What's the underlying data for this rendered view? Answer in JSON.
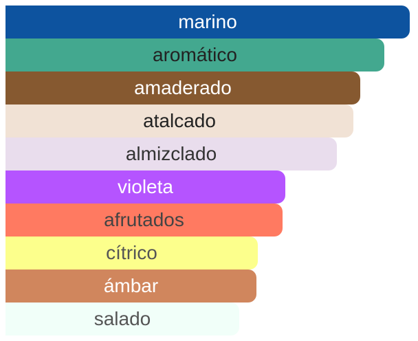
{
  "chart_data": {
    "type": "bar",
    "orientation": "horizontal",
    "title": "",
    "xlabel": "",
    "ylabel": "",
    "grid": false,
    "xlim": [
      0,
      588
    ],
    "categories": [
      "marino",
      "aromático",
      "amaderado",
      "atalcado",
      "almizclado",
      "violeta",
      "afrutados",
      "cítrico",
      "ámbar",
      "salado"
    ],
    "values": [
      588,
      551,
      516,
      506,
      482,
      407,
      403,
      367,
      365,
      340
    ],
    "colors": [
      "#0d539f",
      "#43a88f",
      "#865930",
      "#f1e2d5",
      "#e9dded",
      "#b554ff",
      "#ff7a61",
      "#fcff8c",
      "#d0865d",
      "#f1fff9"
    ],
    "label_colors": [
      "#ffffff",
      "#222222",
      "#ffffff",
      "#222222",
      "#333333",
      "#ffffff",
      "#444444",
      "#555555",
      "#ffffff",
      "#555555"
    ]
  }
}
